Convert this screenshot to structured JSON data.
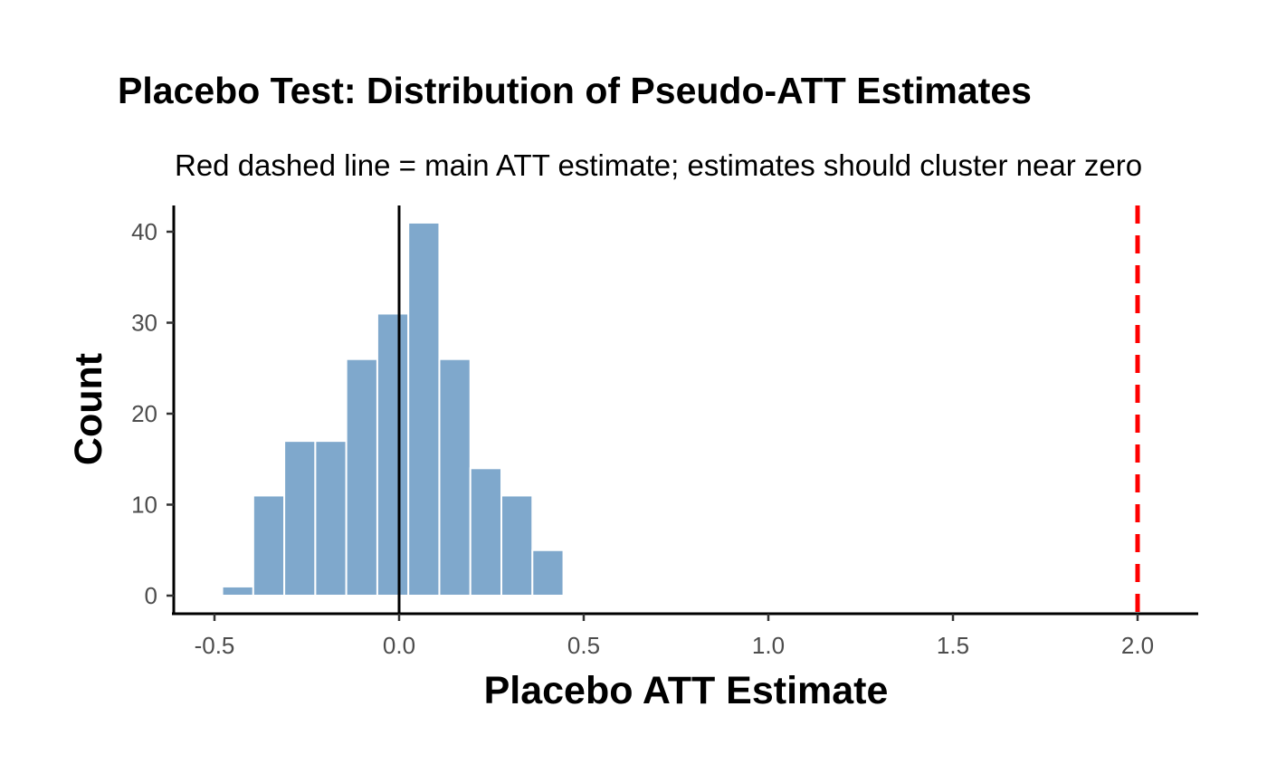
{
  "chart_data": {
    "type": "bar",
    "subtype": "histogram",
    "title": "Placebo Test: Distribution of Pseudo-ATT Estimates",
    "subtitle": "Red dashed line = main ATT estimate; estimates should cluster near zero",
    "xlabel": "Placebo ATT Estimate",
    "ylabel": "Count",
    "xlim": [
      -0.55,
      2.15
    ],
    "ylim": [
      -2,
      43
    ],
    "xticks": [
      -0.5,
      0.0,
      0.5,
      1.0,
      1.5,
      2.0
    ],
    "xtick_labels": [
      "-0.5",
      "0.0",
      "0.5",
      "1.0",
      "1.5",
      "2.0"
    ],
    "yticks": [
      0,
      10,
      20,
      30,
      40
    ],
    "ytick_labels": [
      "0",
      "10",
      "20",
      "30",
      "40"
    ],
    "bin_width": 0.084,
    "bin_start": -0.479,
    "counts": [
      1,
      11,
      17,
      17,
      26,
      31,
      41,
      26,
      14,
      11,
      5
    ],
    "bar_color": "#7FA8CC",
    "reference_lines": [
      {
        "x": 0.0,
        "color": "#000000",
        "style": "solid"
      },
      {
        "x": 2.0,
        "color": "#FF0000",
        "style": "dashed",
        "label": "main ATT estimate"
      }
    ],
    "grid": false
  }
}
